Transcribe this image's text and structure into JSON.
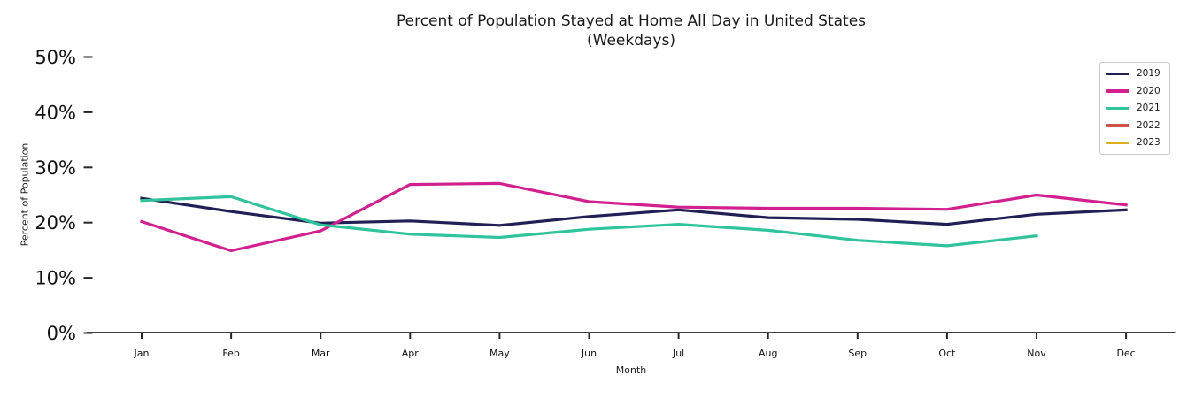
{
  "chart_data": {
    "type": "line",
    "title": "Percent of Population Stayed at Home All Day in United States",
    "subtitle": "(Weekdays)",
    "xlabel": "Month",
    "ylabel": "Percent of Population",
    "categories": [
      "Jan",
      "Feb",
      "Mar",
      "Apr",
      "May",
      "Jun",
      "Jul",
      "Aug",
      "Sep",
      "Oct",
      "Nov",
      "Dec"
    ],
    "ylim": [
      0,
      50
    ],
    "y_tick_step": 10,
    "y_tick_suffix": "%",
    "grid": false,
    "legend_position": "upper-right",
    "series": [
      {
        "name": "2019",
        "color": "#221f54",
        "values": [
          24.4,
          22.0,
          19.9,
          20.3,
          19.5,
          21.1,
          22.3,
          20.9,
          20.6,
          19.7,
          21.5,
          22.3
        ]
      },
      {
        "name": "2020",
        "color": "#d0218f",
        "values": [
          20.2,
          14.9,
          18.5,
          26.9,
          27.1,
          23.8,
          22.8,
          22.6,
          22.6,
          22.4,
          25.0,
          23.2
        ]
      },
      {
        "name": "2021",
        "color": "#31c39c",
        "values": [
          24.0,
          24.7,
          19.6,
          17.9,
          17.3,
          18.8,
          19.7,
          18.6,
          16.8,
          15.8,
          17.6,
          null
        ]
      },
      {
        "name": "2022",
        "color": "#cd5247",
        "values": []
      },
      {
        "name": "2023",
        "color": "#dcaf1e",
        "values": []
      }
    ],
    "axis_color": "#262626",
    "tick_label_color": "#111111"
  }
}
